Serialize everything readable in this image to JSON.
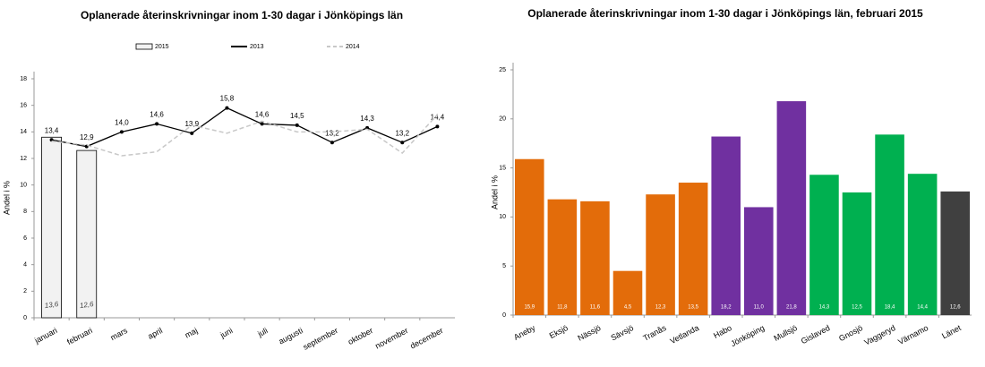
{
  "chart_data": [
    {
      "type": "combo",
      "title": "Oplanerade återinskrivningar inom 1-30 dagar i Jönköpings län",
      "y_label": "Andel i %",
      "categories": [
        "januari",
        "februari",
        "mars",
        "april",
        "maj",
        "juni",
        "juli",
        "augusti",
        "september",
        "oktober",
        "november",
        "december"
      ],
      "ylim": [
        0,
        18
      ],
      "yticks": [
        0,
        2,
        4,
        6,
        8,
        10,
        12,
        14,
        16,
        18
      ],
      "series": [
        {
          "name": "2015",
          "kind": "bar",
          "color": "#f2f2f2",
          "values": [
            13.6,
            12.6,
            null,
            null,
            null,
            null,
            null,
            null,
            null,
            null,
            null,
            null
          ],
          "value_labels": [
            "13,6",
            "12,6",
            null,
            null,
            null,
            null,
            null,
            null,
            null,
            null,
            null,
            null
          ]
        },
        {
          "name": "2013",
          "kind": "line",
          "color": "#000000",
          "values": [
            13.4,
            12.9,
            14.0,
            14.6,
            13.9,
            15.8,
            14.6,
            14.5,
            13.2,
            14.3,
            13.2,
            14.4
          ],
          "value_labels": [
            "13,4",
            "12,9",
            "14,0",
            "14,6",
            "13,9",
            "15,8",
            "14,6",
            "14,5",
            "13,2",
            "14,3",
            "13,2",
            "14,4"
          ]
        },
        {
          "name": "2014",
          "kind": "dashed",
          "color": "#c8c8c8",
          "values": [
            13.3,
            13.0,
            12.2,
            12.5,
            14.5,
            13.9,
            14.8,
            14.0,
            14.0,
            14.2,
            12.4,
            15.3
          ]
        }
      ]
    },
    {
      "type": "bar",
      "title": "Oplanerade återinskrivningar inom 1-30 dagar i Jönköpings län, februari 2015",
      "y_label": "Andel i %",
      "categories": [
        "Aneby",
        "Eksjö",
        "Nässjö",
        "Sävsjö",
        "Tranås",
        "Vetlanda",
        "Habo",
        "Jönköping",
        "Mullsjö",
        "Gislaved",
        "Gnosjö",
        "Vaggeryd",
        "Värnamo",
        "Länet"
      ],
      "values": [
        15.9,
        11.8,
        11.6,
        4.5,
        12.3,
        13.5,
        18.2,
        11.0,
        21.8,
        14.3,
        12.5,
        18.4,
        14.4,
        12.6
      ],
      "value_labels": [
        "15,9",
        "11,8",
        "11,6",
        "4,5",
        "12,3",
        "13,5",
        "18,2",
        "11,0",
        "21,8",
        "14,3",
        "12,5",
        "18,4",
        "14,4",
        "12,6"
      ],
      "colors": [
        "#e36c0a",
        "#e36c0a",
        "#e36c0a",
        "#e36c0a",
        "#e36c0a",
        "#e36c0a",
        "#7030a0",
        "#7030a0",
        "#7030a0",
        "#00b050",
        "#00b050",
        "#00b050",
        "#00b050",
        "#404040"
      ],
      "ylim": [
        0,
        25
      ],
      "yticks": [
        0,
        5,
        10,
        15,
        20,
        25
      ]
    }
  ]
}
